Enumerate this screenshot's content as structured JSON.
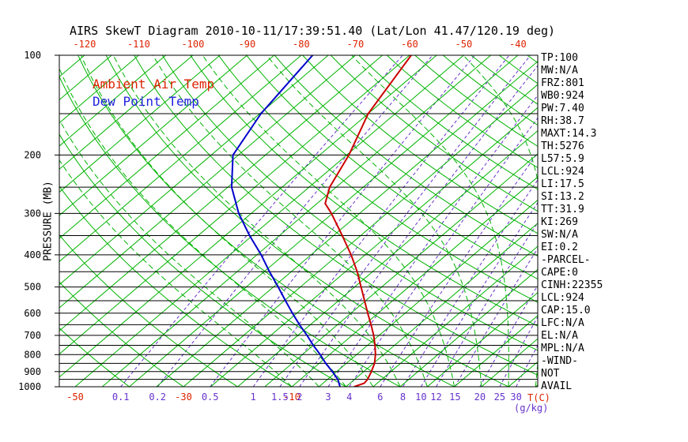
{
  "window": {
    "title": "AIRS SkewT Diagram 2010-10-11/17:39:51.40 (Lat/Lon 41.47/120.19 deg)"
  },
  "legend": {
    "air_temp": "Ambient Air Temp",
    "dew_point": "Dew Point Temp"
  },
  "y_axis_label": "PRESSURE (MB)",
  "x_axis_label_temp": "T(C)",
  "x_axis_label_mixing": "(g/kg)",
  "stats_panel": {
    "lines": [
      "TP:100",
      "MW:N/A",
      "FRZ:801",
      "WB0:924",
      "PW:7.40",
      "RH:38.7",
      "MAXT:14.3",
      "TH:5276",
      "L57:5.9",
      "LCL:924",
      "LI:17.5",
      "SI:13.2",
      "TT:31.9",
      "KI:269",
      "SW:N/A",
      "EI:0.2",
      "-PARCEL-",
      "CAPE:0",
      "CINH:22355",
      "LCL:924",
      "CAP:15.0",
      "LFC:N/A",
      "EL:N/A",
      "MPL:N/A",
      "-WIND-",
      "NOT",
      "AVAIL"
    ]
  },
  "colors": {
    "grid_green": "#00b400",
    "mixing_ratio": "#6633cc",
    "axis_red": "#dd2200",
    "temp_red": "#cc0000",
    "dew_blue": "#0000cc",
    "legend_blue": "#2222dd",
    "black": "#000000"
  },
  "chart_data": {
    "type": "line",
    "title": "AIRS SkewT Diagram 2010-10-11/17:39:51.40 (Lat/Lon 41.47/120.19 deg)",
    "x_axis": {
      "label": "T(C)",
      "top_tick_labels_c": [
        -120,
        -110,
        -100,
        -90,
        -80,
        -70,
        -60,
        -50,
        -40
      ],
      "bottom_tick_labels_c": [
        -50,
        -30,
        -10
      ]
    },
    "y_axis": {
      "label": "PRESSURE (MB)",
      "scale": "log",
      "range_mb": [
        100,
        1000
      ],
      "ticks_mb": [
        100,
        200,
        300,
        400,
        500,
        600,
        700,
        800,
        900,
        1000
      ]
    },
    "grid": {
      "isotherms_c": {
        "min": -130,
        "max": 45,
        "step": 5
      },
      "dry_adiabats_theta_c": {
        "min": -40,
        "max": 220,
        "step": 10
      },
      "moist_adiabats_surface_c": {
        "min": -10,
        "max": 40,
        "step": 5
      },
      "mixing_ratio_g_kg": [
        0.1,
        0.2,
        0.5,
        1,
        1.5,
        2,
        3,
        4,
        6,
        8,
        10,
        12,
        15,
        20,
        25,
        30
      ],
      "pressure_lines_mb": {
        "min": 100,
        "max": 1000,
        "step": 50
      }
    },
    "units": {
      "temperature": "C",
      "pressure": "mb",
      "mixing_ratio": "g/kg"
    },
    "series": [
      {
        "id": "ambient-temp-curve",
        "name": "Ambient Air Temp",
        "color": "#cc0000",
        "points": [
          [
            1000,
            1.5
          ],
          [
            975,
            2.6
          ],
          [
            950,
            2.4
          ],
          [
            900,
            1.4
          ],
          [
            850,
            0.2
          ],
          [
            800,
            -1.5
          ],
          [
            750,
            -3.6
          ],
          [
            700,
            -6.0
          ],
          [
            650,
            -8.8
          ],
          [
            600,
            -11.9
          ],
          [
            550,
            -15.2
          ],
          [
            500,
            -18.8
          ],
          [
            450,
            -22.8
          ],
          [
            400,
            -27.6
          ],
          [
            350,
            -33.4
          ],
          [
            300,
            -40.2
          ],
          [
            280,
            -43.5
          ],
          [
            250,
            -46.2
          ],
          [
            200,
            -49.6
          ],
          [
            150,
            -55.0
          ],
          [
            100,
            -59.7
          ]
        ]
      },
      {
        "id": "dew-point-curve",
        "name": "Dew Point Temp",
        "color": "#0000cc",
        "points": [
          [
            1000,
            -1.1
          ],
          [
            950,
            -3.1
          ],
          [
            900,
            -5.8
          ],
          [
            850,
            -8.8
          ],
          [
            800,
            -11.7
          ],
          [
            750,
            -15.0
          ],
          [
            700,
            -18.3
          ],
          [
            650,
            -22.0
          ],
          [
            600,
            -25.8
          ],
          [
            550,
            -29.8
          ],
          [
            500,
            -34.1
          ],
          [
            450,
            -39.0
          ],
          [
            400,
            -44.2
          ],
          [
            350,
            -50.5
          ],
          [
            300,
            -57.3
          ],
          [
            250,
            -64.3
          ],
          [
            200,
            -71.0
          ],
          [
            150,
            -74.8
          ],
          [
            100,
            -77.9
          ]
        ]
      }
    ]
  }
}
